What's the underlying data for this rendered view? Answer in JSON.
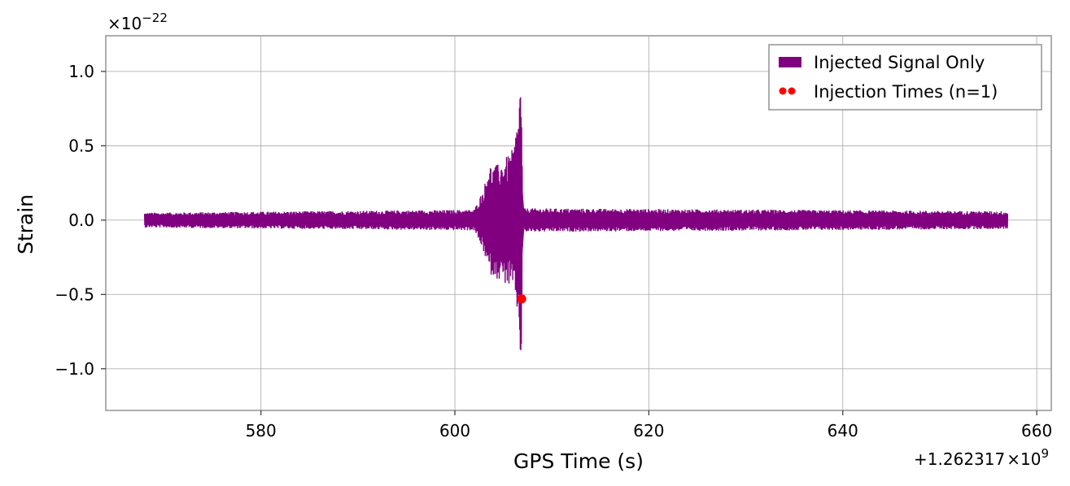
{
  "chart_data": {
    "type": "line",
    "title": "",
    "xlabel": "GPS Time (s)",
    "ylabel": "Strain",
    "x_offset_label": "+1.262317",
    "x_offset_exponent": "9",
    "y_scale_label": "×10",
    "y_scale_exponent": "−22",
    "xlim": [
      564,
      661.5
    ],
    "ylim": [
      -1.28,
      1.24
    ],
    "x_ticks": [
      {
        "value": 580,
        "label": "580"
      },
      {
        "value": 600,
        "label": "600"
      },
      {
        "value": 620,
        "label": "620"
      },
      {
        "value": 640,
        "label": "640"
      },
      {
        "value": 660,
        "label": "660"
      }
    ],
    "y_ticks": [
      {
        "value": 1.0,
        "label": "1.0"
      },
      {
        "value": 0.5,
        "label": "0.5"
      },
      {
        "value": 0.0,
        "label": "0.0"
      },
      {
        "value": -0.5,
        "label": "−0.5"
      },
      {
        "value": -1.0,
        "label": "−1.0"
      }
    ],
    "grid": true,
    "legend_position": "top-right",
    "series": [
      {
        "name": "Injected Signal Only",
        "kind": "strain",
        "color": "#800080",
        "x_range": [
          568,
          657
        ],
        "background_envelope": 0.07,
        "envelope_upper": [
          {
            "x": 568.0,
            "y": 0.05
          },
          {
            "x": 602.0,
            "y": 0.07
          },
          {
            "x": 603.0,
            "y": 0.22
          },
          {
            "x": 603.5,
            "y": 0.38
          },
          {
            "x": 604.0,
            "y": 0.36
          },
          {
            "x": 605.0,
            "y": 0.4
          },
          {
            "x": 606.0,
            "y": 0.48
          },
          {
            "x": 606.6,
            "y": 0.73
          },
          {
            "x": 606.8,
            "y": 1.12
          },
          {
            "x": 607.0,
            "y": 0.08
          },
          {
            "x": 657.0,
            "y": 0.06
          }
        ],
        "envelope_lower": [
          {
            "x": 568.0,
            "y": -0.05
          },
          {
            "x": 602.0,
            "y": -0.07
          },
          {
            "x": 603.0,
            "y": -0.22
          },
          {
            "x": 603.5,
            "y": -0.36
          },
          {
            "x": 604.0,
            "y": -0.38
          },
          {
            "x": 605.0,
            "y": -0.42
          },
          {
            "x": 606.0,
            "y": -0.47
          },
          {
            "x": 606.6,
            "y": -0.68
          },
          {
            "x": 606.8,
            "y": -1.16
          },
          {
            "x": 607.0,
            "y": -0.08
          },
          {
            "x": 657.0,
            "y": -0.06
          }
        ]
      },
      {
        "name": "Injection Times (n=1)",
        "kind": "scatter",
        "color": "#ff0000",
        "points": [
          {
            "x": 606.9,
            "y": -0.53
          }
        ]
      }
    ]
  }
}
